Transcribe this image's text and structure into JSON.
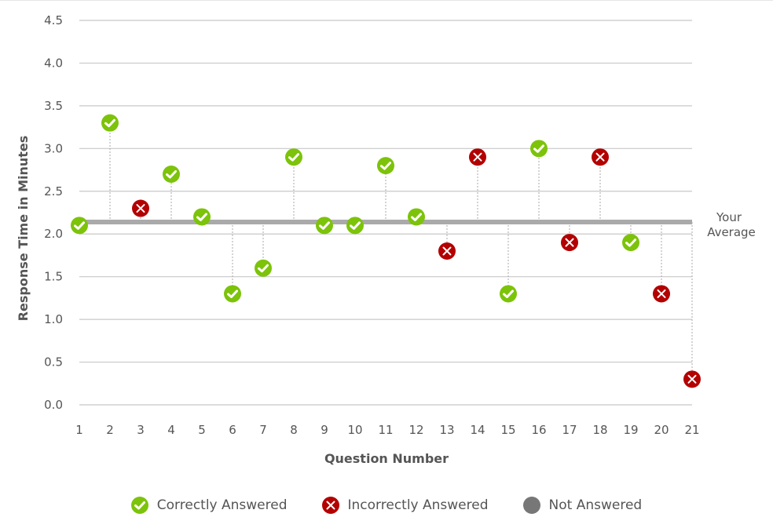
{
  "chart_data": {
    "type": "scatter",
    "xlabel": "Question Number",
    "ylabel": "Response Time in Minutes",
    "ylim": [
      0,
      4.5
    ],
    "yticks": [
      "0.0",
      "0.5",
      "1.0",
      "1.5",
      "2.0",
      "2.5",
      "3.0",
      "3.5",
      "4.0",
      "4.5"
    ],
    "x": [
      1,
      2,
      3,
      4,
      5,
      6,
      7,
      8,
      9,
      10,
      11,
      12,
      13,
      14,
      15,
      16,
      17,
      18,
      19,
      20,
      21
    ],
    "values": [
      2.1,
      3.3,
      2.3,
      2.7,
      2.2,
      1.3,
      1.6,
      2.9,
      2.1,
      2.1,
      2.8,
      2.2,
      1.8,
      2.9,
      1.3,
      3.0,
      1.9,
      2.9,
      1.9,
      1.3,
      0.3
    ],
    "status": [
      "correct",
      "correct",
      "incorrect",
      "correct",
      "correct",
      "correct",
      "correct",
      "correct",
      "correct",
      "correct",
      "correct",
      "correct",
      "incorrect",
      "incorrect",
      "correct",
      "correct",
      "incorrect",
      "incorrect",
      "correct",
      "incorrect",
      "incorrect"
    ],
    "average": 2.14,
    "average_label_line1": "Your",
    "average_label_line2": "Average",
    "grid": true,
    "legend_placement": "bottom",
    "legend": [
      "Correctly Answered",
      "Incorrectly Answered",
      "Not Answered"
    ],
    "colors": {
      "correct": "#7cc30a",
      "incorrect": "#b30000",
      "not_answered": "#777777",
      "average": "#aaaaaa"
    }
  }
}
